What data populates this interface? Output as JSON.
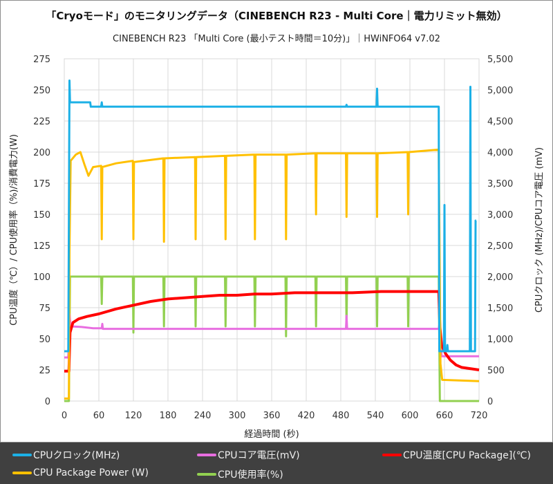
{
  "title": "「Cryoモード」のモニタリングデータ（CINEBENCH R23 - Multi Core｜電力リミット無効）",
  "subtitle": "CINEBENCH R23 「Multi Core (最小テスト時間＝10分)」｜HWiNFO64 v7.02",
  "chart_data": {
    "type": "line",
    "xlabel": "経過時間 (秒)",
    "ylabel_left": "CPU温度（℃）/ CPU使用率（%)/消費電力(W)",
    "ylabel_right": "CPUクロック (MHz)/CPUコア電圧 (mV)",
    "xlim": [
      0,
      720
    ],
    "xticks": [
      0,
      60,
      120,
      180,
      240,
      300,
      360,
      420,
      480,
      540,
      600,
      660,
      720
    ],
    "ylim_left": [
      0,
      275
    ],
    "yticks_left": [
      0,
      25,
      50,
      75,
      100,
      125,
      150,
      175,
      200,
      225,
      250,
      275
    ],
    "ylim_right": [
      0,
      5500
    ],
    "yticks_right": [
      "0",
      "500",
      "1,000",
      "1,500",
      "2,000",
      "2,500",
      "3,000",
      "3,500",
      "4,000",
      "4,500",
      "5,000",
      "5,500"
    ],
    "grid": true,
    "legend_position": "bottom",
    "series": [
      {
        "name": "CPUクロック(MHz)",
        "axis": "right",
        "color": "#1cb0e6",
        "points": [
          [
            0,
            800
          ],
          [
            7,
            800
          ],
          [
            8,
            3000
          ],
          [
            9,
            5150
          ],
          [
            10,
            4800
          ],
          [
            45,
            4800
          ],
          [
            46,
            4730
          ],
          [
            64,
            4730
          ],
          [
            65,
            4800
          ],
          [
            66,
            4730
          ],
          [
            489,
            4730
          ],
          [
            490,
            4760
          ],
          [
            491,
            4730
          ],
          [
            542,
            4730
          ],
          [
            543,
            5020
          ],
          [
            544,
            4730
          ],
          [
            650,
            4730
          ],
          [
            651,
            800
          ],
          [
            659,
            800
          ],
          [
            660,
            3150
          ],
          [
            661,
            800
          ],
          [
            664,
            800
          ],
          [
            665,
            900
          ],
          [
            666,
            800
          ],
          [
            704,
            800
          ],
          [
            705,
            5050
          ],
          [
            706,
            800
          ],
          [
            713,
            800
          ],
          [
            714,
            2900
          ],
          [
            715,
            2900
          ]
        ]
      },
      {
        "name": "CPUコア電圧(mV)",
        "axis": "right",
        "color": "#e86ee0",
        "points": [
          [
            0,
            700
          ],
          [
            7,
            700
          ],
          [
            9,
            1400
          ],
          [
            11,
            1200
          ],
          [
            30,
            1190
          ],
          [
            50,
            1170
          ],
          [
            65,
            1170
          ],
          [
            66,
            1240
          ],
          [
            67,
            1160
          ],
          [
            489,
            1160
          ],
          [
            490,
            1370
          ],
          [
            491,
            1160
          ],
          [
            650,
            1160
          ],
          [
            652,
            1300
          ],
          [
            655,
            720
          ],
          [
            720,
            720
          ]
        ]
      },
      {
        "name": "CPU温度[CPU Package](℃)",
        "axis": "left",
        "color": "#ff0000",
        "points": [
          [
            0,
            24
          ],
          [
            8,
            24
          ],
          [
            10,
            55
          ],
          [
            15,
            63
          ],
          [
            25,
            66
          ],
          [
            40,
            68
          ],
          [
            60,
            70
          ],
          [
            90,
            74
          ],
          [
            120,
            77
          ],
          [
            150,
            80
          ],
          [
            180,
            82
          ],
          [
            210,
            83
          ],
          [
            240,
            84
          ],
          [
            270,
            85
          ],
          [
            300,
            85
          ],
          [
            330,
            86
          ],
          [
            360,
            86
          ],
          [
            400,
            87
          ],
          [
            450,
            87
          ],
          [
            500,
            87
          ],
          [
            550,
            88
          ],
          [
            600,
            88
          ],
          [
            650,
            88
          ],
          [
            652,
            60
          ],
          [
            655,
            45
          ],
          [
            662,
            38
          ],
          [
            670,
            33
          ],
          [
            680,
            29
          ],
          [
            690,
            27
          ],
          [
            720,
            25
          ]
        ]
      },
      {
        "name": "CPU Package Power (W)",
        "axis": "left",
        "color": "#ffc000",
        "points": [
          [
            0,
            2
          ],
          [
            8,
            2
          ],
          [
            9,
            120
          ],
          [
            11,
            193
          ],
          [
            20,
            198
          ],
          [
            28,
            200
          ],
          [
            35,
            190
          ],
          [
            42,
            181
          ],
          [
            50,
            188
          ],
          [
            64,
            189
          ],
          [
            65,
            130
          ],
          [
            66,
            188
          ],
          [
            90,
            191
          ],
          [
            119,
            193
          ],
          [
            120,
            130
          ],
          [
            121,
            192
          ],
          [
            172,
            195
          ],
          [
            173,
            128
          ],
          [
            174,
            195
          ],
          [
            227,
            196
          ],
          [
            228,
            130
          ],
          [
            229,
            196
          ],
          [
            279,
            197
          ],
          [
            280,
            130
          ],
          [
            281,
            197
          ],
          [
            330,
            198
          ],
          [
            331,
            130
          ],
          [
            332,
            198
          ],
          [
            384,
            198
          ],
          [
            385,
            130
          ],
          [
            386,
            198
          ],
          [
            436,
            199
          ],
          [
            437,
            150
          ],
          [
            438,
            199
          ],
          [
            489,
            199
          ],
          [
            490,
            148
          ],
          [
            491,
            199
          ],
          [
            542,
            199
          ],
          [
            543,
            148
          ],
          [
            544,
            199
          ],
          [
            596,
            200
          ],
          [
            597,
            150
          ],
          [
            598,
            200
          ],
          [
            650,
            202
          ],
          [
            653,
            30
          ],
          [
            656,
            17
          ],
          [
            720,
            16
          ]
        ]
      },
      {
        "name": "CPU使用率(%)",
        "axis": "left",
        "color": "#92d050",
        "points": [
          [
            0,
            0
          ],
          [
            8,
            0
          ],
          [
            10,
            100
          ],
          [
            64,
            100
          ],
          [
            65,
            78
          ],
          [
            66,
            100
          ],
          [
            119,
            100
          ],
          [
            120,
            55
          ],
          [
            121,
            100
          ],
          [
            172,
            100
          ],
          [
            173,
            60
          ],
          [
            174,
            100
          ],
          [
            227,
            100
          ],
          [
            228,
            60
          ],
          [
            229,
            100
          ],
          [
            279,
            100
          ],
          [
            280,
            60
          ],
          [
            281,
            100
          ],
          [
            330,
            100
          ],
          [
            331,
            60
          ],
          [
            332,
            100
          ],
          [
            384,
            100
          ],
          [
            385,
            52
          ],
          [
            386,
            100
          ],
          [
            436,
            100
          ],
          [
            437,
            60
          ],
          [
            438,
            100
          ],
          [
            489,
            100
          ],
          [
            490,
            60
          ],
          [
            491,
            100
          ],
          [
            542,
            100
          ],
          [
            543,
            60
          ],
          [
            544,
            100
          ],
          [
            596,
            100
          ],
          [
            597,
            60
          ],
          [
            598,
            100
          ],
          [
            650,
            100
          ],
          [
            652,
            0
          ],
          [
            720,
            0
          ]
        ]
      }
    ]
  }
}
